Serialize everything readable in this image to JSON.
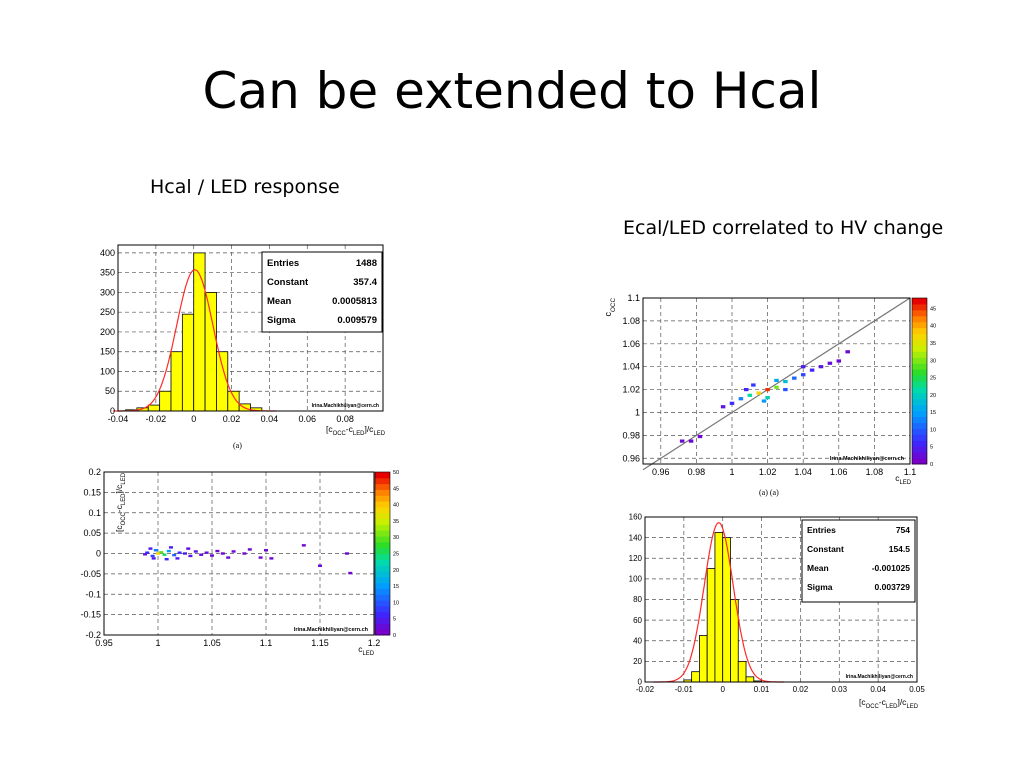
{
  "slide": {
    "title": "Can be extended to Hcal",
    "caption_left": "Hcal / LED response",
    "caption_right": "Ecal/LED correlated to HV change"
  },
  "colors": {
    "hist_fill": "#ffff00",
    "fit_curve": "#ff2a2a",
    "frame": "#000000",
    "grid": "#555555",
    "diag_line": "#777777"
  },
  "chart_data": [
    {
      "id": "hcal_hist",
      "type": "bar",
      "title": "",
      "xlabel": "[c_OCC - c_LED]/c_LED",
      "ylabel": "",
      "xlim": [
        -0.04,
        0.1
      ],
      "ylim": [
        0,
        420
      ],
      "x_ticks": [
        "-0.04",
        "-0.02",
        "0",
        "0.02",
        "0.04",
        "0.06",
        "0.08"
      ],
      "y_ticks": [
        "0",
        "50",
        "100",
        "150",
        "200",
        "250",
        "300",
        "350",
        "400"
      ],
      "bin_edges": [
        -0.036,
        -0.03,
        -0.024,
        -0.018,
        -0.012,
        -0.006,
        0.0,
        0.006,
        0.012,
        0.018,
        0.024,
        0.03,
        0.036
      ],
      "values": [
        3,
        8,
        15,
        50,
        150,
        245,
        400,
        300,
        150,
        50,
        18,
        8
      ],
      "fit": {
        "constant": 357.4,
        "mean": 0.0005813,
        "sigma": 0.009579
      },
      "stats": [
        {
          "label": "Entries",
          "value": "1488"
        },
        {
          "label": "Constant",
          "value": "357.4"
        },
        {
          "label": "Mean",
          "value": "0.0005813"
        },
        {
          "label": "Sigma",
          "value": "0.009579"
        }
      ],
      "signature": "Irina.Machikhiliyan@cern.ch",
      "sublabel": "(a)",
      "grid": true
    },
    {
      "id": "hcal_scatter",
      "type": "heatmap",
      "xlabel": "c_LED",
      "ylabel": "[c_OCC - c_LED]/c_LED",
      "xlim": [
        0.95,
        1.2
      ],
      "ylim": [
        -0.2,
        0.2
      ],
      "x_ticks": [
        "0.95",
        "1",
        "1.05",
        "1.1",
        "1.15",
        "1.2"
      ],
      "y_ticks": [
        "0.2",
        "0.15",
        "0.1",
        "0.05",
        "0",
        "-0.05",
        "-0.1",
        "-0.15",
        "-0.2"
      ],
      "colorbar_ticks": [
        "50",
        "45",
        "40",
        "35",
        "30",
        "25",
        "20",
        "15",
        "10",
        "5",
        "0"
      ],
      "colorbar_range": [
        0,
        50
      ],
      "points": [
        {
          "x": 1.0,
          "y": 0.0,
          "v": 40
        },
        {
          "x": 1.003,
          "y": 0.003,
          "v": 30
        },
        {
          "x": 1.006,
          "y": -0.003,
          "v": 25
        },
        {
          "x": 0.998,
          "y": 0.008,
          "v": 12
        },
        {
          "x": 1.01,
          "y": 0.006,
          "v": 15
        },
        {
          "x": 1.015,
          "y": -0.004,
          "v": 10
        },
        {
          "x": 0.995,
          "y": -0.006,
          "v": 8
        },
        {
          "x": 1.02,
          "y": 0.002,
          "v": 6
        },
        {
          "x": 1.025,
          "y": 0.0,
          "v": 5
        },
        {
          "x": 1.03,
          "y": -0.006,
          "v": 3
        },
        {
          "x": 1.035,
          "y": 0.005,
          "v": 3
        },
        {
          "x": 1.04,
          "y": -0.003,
          "v": 2
        },
        {
          "x": 0.993,
          "y": 0.012,
          "v": 4
        },
        {
          "x": 0.996,
          "y": -0.012,
          "v": 4
        },
        {
          "x": 1.045,
          "y": 0.002,
          "v": 2
        },
        {
          "x": 1.05,
          "y": -0.005,
          "v": 1
        },
        {
          "x": 1.055,
          "y": 0.006,
          "v": 1
        },
        {
          "x": 1.06,
          "y": 0.0,
          "v": 1
        },
        {
          "x": 1.065,
          "y": -0.01,
          "v": 1
        },
        {
          "x": 1.07,
          "y": 0.005,
          "v": 1
        },
        {
          "x": 1.08,
          "y": 0.0,
          "v": 1
        },
        {
          "x": 1.085,
          "y": 0.01,
          "v": 1
        },
        {
          "x": 1.095,
          "y": -0.01,
          "v": 1
        },
        {
          "x": 1.1,
          "y": 0.008,
          "v": 1
        },
        {
          "x": 1.105,
          "y": -0.012,
          "v": 1
        },
        {
          "x": 1.135,
          "y": 0.02,
          "v": 1
        },
        {
          "x": 1.15,
          "y": -0.03,
          "v": 1
        },
        {
          "x": 1.175,
          "y": 0.0,
          "v": 1
        },
        {
          "x": 1.178,
          "y": -0.048,
          "v": 1
        },
        {
          "x": 1.012,
          "y": 0.015,
          "v": 5
        },
        {
          "x": 1.008,
          "y": -0.014,
          "v": 6
        },
        {
          "x": 1.018,
          "y": -0.012,
          "v": 4
        },
        {
          "x": 1.028,
          "y": 0.012,
          "v": 2
        },
        {
          "x": 0.99,
          "y": 0.002,
          "v": 6
        },
        {
          "x": 0.988,
          "y": -0.002,
          "v": 3
        }
      ],
      "signature": "Irina.Machikhiliyan@cern.ch",
      "grid": true
    },
    {
      "id": "ecal_scatter",
      "type": "heatmap",
      "xlabel": "c_LED",
      "ylabel": "c_OCC",
      "xlim": [
        0.95,
        1.1
      ],
      "ylim": [
        0.955,
        1.1
      ],
      "x_ticks": [
        "0.96",
        "0.98",
        "1",
        "1.02",
        "1.04",
        "1.06",
        "1.08",
        "1.1"
      ],
      "y_ticks": [
        "1.1",
        "1.08",
        "1.06",
        "1.04",
        "1.02",
        "1",
        "0.98",
        "0.96"
      ],
      "colorbar_ticks": [
        "45",
        "40",
        "35",
        "30",
        "25",
        "20",
        "15",
        "10",
        "5",
        "0"
      ],
      "colorbar_range": [
        0,
        48
      ],
      "points": [
        {
          "x": 1.02,
          "y": 1.02,
          "v": 46
        },
        {
          "x": 1.015,
          "y": 1.017,
          "v": 38
        },
        {
          "x": 1.025,
          "y": 1.022,
          "v": 30
        },
        {
          "x": 1.01,
          "y": 1.015,
          "v": 22
        },
        {
          "x": 1.03,
          "y": 1.027,
          "v": 18
        },
        {
          "x": 1.005,
          "y": 1.012,
          "v": 12
        },
        {
          "x": 1.035,
          "y": 1.03,
          "v": 10
        },
        {
          "x": 1.04,
          "y": 1.033,
          "v": 8
        },
        {
          "x": 1.045,
          "y": 1.037,
          "v": 5
        },
        {
          "x": 1.0,
          "y": 1.008,
          "v": 6
        },
        {
          "x": 0.995,
          "y": 1.005,
          "v": 3
        },
        {
          "x": 1.05,
          "y": 1.04,
          "v": 3
        },
        {
          "x": 1.055,
          "y": 1.043,
          "v": 2
        },
        {
          "x": 1.06,
          "y": 1.045,
          "v": 1
        },
        {
          "x": 1.065,
          "y": 1.053,
          "v": 1
        },
        {
          "x": 0.972,
          "y": 0.975,
          "v": 1
        },
        {
          "x": 0.977,
          "y": 0.975,
          "v": 1
        },
        {
          "x": 0.982,
          "y": 0.979,
          "v": 1
        },
        {
          "x": 1.02,
          "y": 1.013,
          "v": 20
        },
        {
          "x": 1.025,
          "y": 1.028,
          "v": 15
        },
        {
          "x": 1.03,
          "y": 1.02,
          "v": 9
        },
        {
          "x": 1.012,
          "y": 1.024,
          "v": 7
        },
        {
          "x": 1.018,
          "y": 1.01,
          "v": 14
        },
        {
          "x": 1.04,
          "y": 1.04,
          "v": 4
        },
        {
          "x": 1.008,
          "y": 1.02,
          "v": 5
        }
      ],
      "signature": "Irina.Machikhiliyan@cern.ch",
      "sublabel": "(a) (a)",
      "grid": true
    },
    {
      "id": "ecal_hist",
      "type": "bar",
      "xlabel": "[c_OCC - c_LED]/c_LED",
      "ylabel": "",
      "xlim": [
        -0.02,
        0.05
      ],
      "ylim": [
        0,
        160
      ],
      "x_ticks": [
        "-0.02",
        "-0.01",
        "0",
        "0.01",
        "0.02",
        "0.03",
        "0.04",
        "0.05"
      ],
      "y_ticks": [
        "0",
        "20",
        "40",
        "60",
        "80",
        "100",
        "120",
        "140",
        "160"
      ],
      "bin_edges": [
        -0.01,
        -0.008,
        -0.006,
        -0.004,
        -0.002,
        0.0,
        0.002,
        0.004,
        0.006,
        0.008,
        0.01
      ],
      "values": [
        2,
        10,
        45,
        110,
        145,
        140,
        80,
        20,
        5,
        1
      ],
      "fit": {
        "constant": 154.5,
        "mean": -0.001025,
        "sigma": 0.003729
      },
      "stats": [
        {
          "label": "Entries",
          "value": "754"
        },
        {
          "label": "Constant",
          "value": "154.5"
        },
        {
          "label": "Mean",
          "value": "-0.001025"
        },
        {
          "label": "Sigma",
          "value": "0.003729"
        }
      ],
      "signature": "Irina.Machikhiliyan@cern.ch",
      "grid": true
    }
  ]
}
